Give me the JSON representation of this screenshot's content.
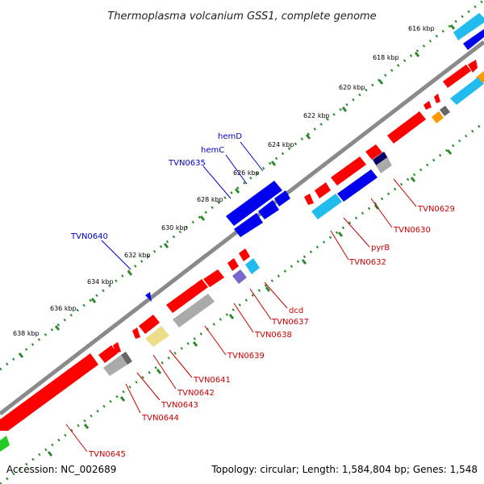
{
  "header": {
    "title": "Thermoplasma volcanium GSS1, complete genome"
  },
  "footer": {
    "accession": "Accession: NC_002689",
    "topology": "Topology: circular; Length: 1,584,804 bp; Genes: 1,548"
  },
  "colors": {
    "backbone": "#8a8a8a",
    "tick_dot": "#2a8a2a",
    "label_blue": "#0000cc",
    "label_red": "#cc0000",
    "gene_red": "#ff0000",
    "gene_blue": "#0000ee",
    "gene_cyan": "#22bbee",
    "gene_gray": "#aaaaaa",
    "gene_darkgray": "#666666",
    "gene_navy": "#000066",
    "gene_yellow": "#eedd88",
    "gene_violet": "#7766cc",
    "gene_orange": "#ff9900",
    "gene_green": "#22cc22"
  },
  "ticks": [
    {
      "label": "616 kbp"
    },
    {
      "label": "618 kbp"
    },
    {
      "label": "620 kbp"
    },
    {
      "label": "622 kbp"
    },
    {
      "label": "624 kbp"
    },
    {
      "label": "626 kbp"
    },
    {
      "label": "628 kbp"
    },
    {
      "label": "630 kbp"
    },
    {
      "label": "632 kbp"
    },
    {
      "label": "634 kbp"
    },
    {
      "label": "636 kbp"
    },
    {
      "label": "638 kbp"
    }
  ],
  "labels_top": [
    {
      "text": "hemD"
    },
    {
      "text": "hemC"
    },
    {
      "text": "TVN0635"
    },
    {
      "text": "TVN0640"
    }
  ],
  "labels_bottom": [
    {
      "text": "TVN0629"
    },
    {
      "text": "TVN0630"
    },
    {
      "text": "pyrB"
    },
    {
      "text": "TVN0632"
    },
    {
      "text": "dcd"
    },
    {
      "text": "TVN0637"
    },
    {
      "text": "TVN0638"
    },
    {
      "text": "TVN0639"
    },
    {
      "text": "TVN0641"
    },
    {
      "text": "TVN0642"
    },
    {
      "text": "TVN0643"
    },
    {
      "text": "TVN0644"
    },
    {
      "text": "TVN0645"
    }
  ]
}
